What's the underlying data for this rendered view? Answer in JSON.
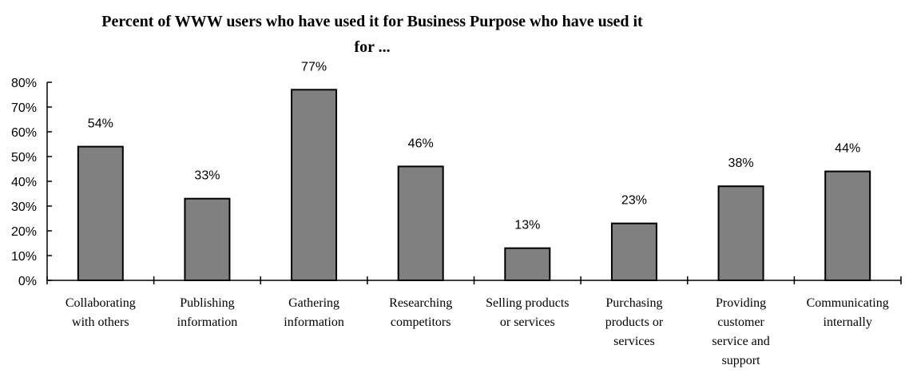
{
  "chart_data": {
    "type": "bar",
    "title": [
      "Percent of WWW users who have used it for Business Purpose who have used it",
      "for ..."
    ],
    "xlabel": "",
    "ylabel": "",
    "ylim": [
      0,
      80
    ],
    "yticks": [
      "0%",
      "10%",
      "20%",
      "30%",
      "40%",
      "50%",
      "60%",
      "70%",
      "80%"
    ],
    "grid": false,
    "legend": "none",
    "bar_color": "#808080",
    "categories": [
      [
        "Collaborating",
        "with others"
      ],
      [
        "Publishing",
        "information"
      ],
      [
        "Gathering",
        "information"
      ],
      [
        "Researching",
        "competitors"
      ],
      [
        "Selling products",
        "or services"
      ],
      [
        "Purchasing",
        "products or",
        "services"
      ],
      [
        "Providing",
        "customer",
        "service and",
        "support"
      ],
      [
        "Communicating",
        "internally"
      ]
    ],
    "values": [
      54,
      33,
      77,
      46,
      13,
      23,
      38,
      44
    ],
    "data_labels": [
      "54%",
      "33%",
      "77%",
      "46%",
      "13%",
      "23%",
      "38%",
      "44%"
    ]
  }
}
